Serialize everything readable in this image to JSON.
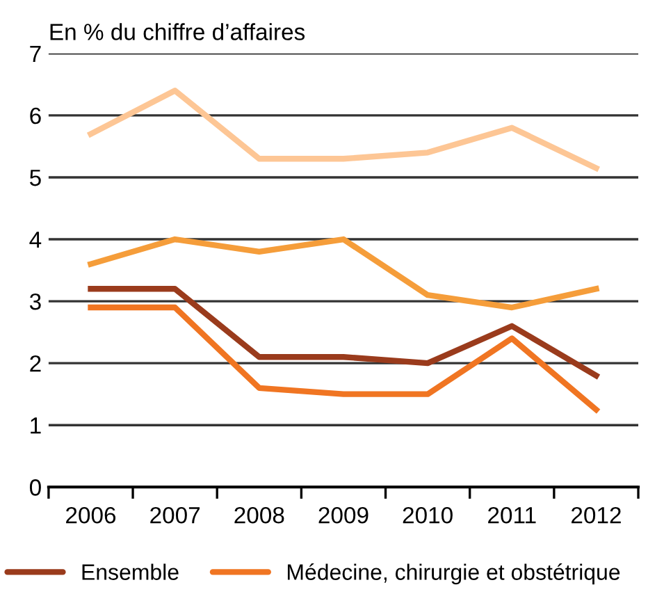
{
  "chart_data": {
    "type": "line",
    "ylabel": "En % du chiffre d’affaires",
    "categories": [
      "2006",
      "2007",
      "2008",
      "2009",
      "2010",
      "2011",
      "2012"
    ],
    "series": [
      {
        "color": "#fdc695",
        "values": [
          5.7,
          6.4,
          5.3,
          5.3,
          5.4,
          5.8,
          5.15
        ]
      },
      {
        "color": "#f59d3a",
        "values": [
          3.6,
          4.0,
          3.8,
          4.0,
          3.1,
          2.9,
          3.2
        ]
      },
      {
        "name": "Ensemble",
        "color": "#9a3b1c",
        "values": [
          3.2,
          3.2,
          2.1,
          2.1,
          2.0,
          2.6,
          1.8
        ]
      },
      {
        "name": "Médecine, chirurgie et obstétrique",
        "color": "#f07522",
        "values": [
          2.9,
          2.9,
          1.6,
          1.5,
          1.5,
          2.4,
          1.25
        ]
      }
    ],
    "ylim": [
      0,
      7
    ],
    "yticks": [
      0,
      1,
      2,
      3,
      4,
      5,
      6,
      7
    ],
    "grid": "y",
    "legend": "bottom",
    "marker": "none",
    "line_style": "solid"
  }
}
